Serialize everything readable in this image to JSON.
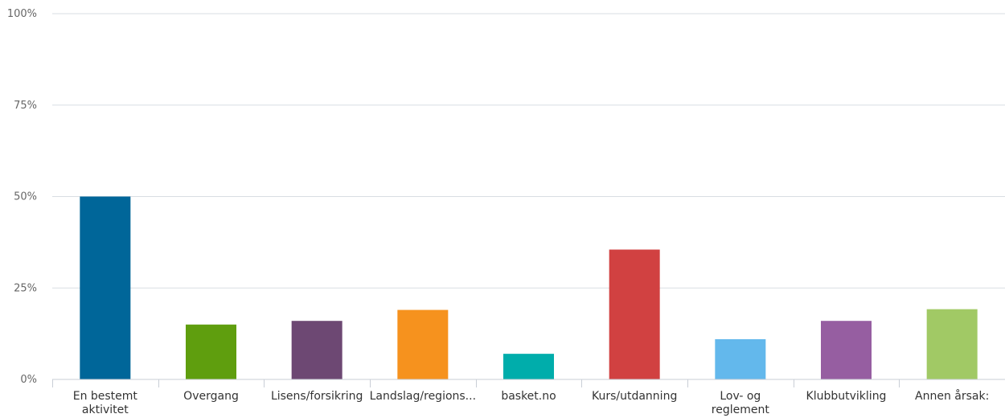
{
  "chart_data": {
    "type": "bar",
    "categories": [
      "En bestemt aktivitet",
      "Overgang",
      "Lisens/forsikring",
      "Landslag/regions...",
      "basket.no",
      "Kurs/utdanning",
      "Lov- og reglement",
      "Klubbutvikling",
      "Annen årsak:"
    ],
    "category_lines": [
      [
        "En bestemt",
        "aktivitet"
      ],
      [
        "Overgang"
      ],
      [
        "Lisens/forsikring"
      ],
      [
        "Landslag/regions..."
      ],
      [
        "basket.no"
      ],
      [
        "Kurs/utdanning"
      ],
      [
        "Lov- og",
        "reglement"
      ],
      [
        "Klubbutvikling"
      ],
      [
        "Annen årsak:"
      ]
    ],
    "values": [
      50,
      15,
      16,
      19,
      7,
      35.5,
      11,
      16,
      19.2
    ],
    "colors": [
      "#006699",
      "#5f9e0e",
      "#6d4873",
      "#f6921e",
      "#00adab",
      "#d14141",
      "#63b8ec",
      "#965ea1",
      "#a1c965"
    ],
    "yticks": [
      "0%",
      "25%",
      "50%",
      "75%",
      "100%"
    ],
    "ylim": [
      0,
      100
    ],
    "grid": true,
    "title": "",
    "xlabel": "",
    "ylabel": ""
  }
}
